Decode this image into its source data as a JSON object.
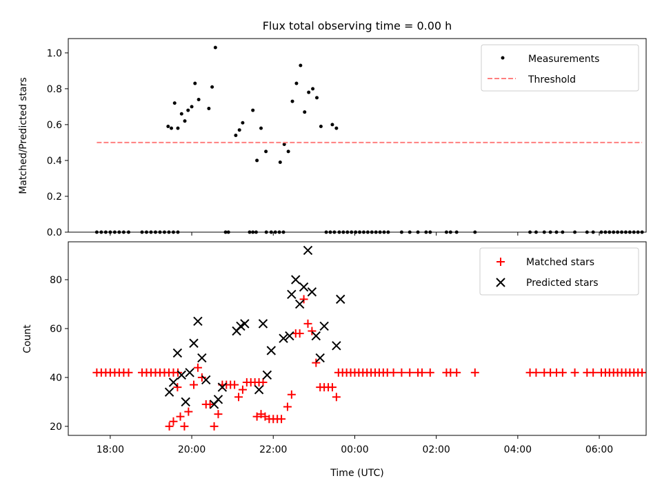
{
  "chart_data": [
    {
      "type": "scatter",
      "title": "Flux total observing time = 0.00 h",
      "xlabel": "",
      "ylabel": "Matched/Predicted stars",
      "xlim": [
        16.97,
        31.15
      ],
      "ylim": [
        0.0,
        1.08
      ],
      "yticks": [
        0.0,
        0.2,
        0.4,
        0.6,
        0.8,
        1.0
      ],
      "ytick_labels": [
        "0.0",
        "0.2",
        "0.4",
        "0.6",
        "0.8",
        "1.0"
      ],
      "legend_position": "top-right",
      "series": [
        {
          "name": "Measurements",
          "marker": "dot",
          "color": "#000000",
          "points": [
            [
              17.67,
              0
            ],
            [
              17.78,
              0
            ],
            [
              17.89,
              0
            ],
            [
              18.0,
              0
            ],
            [
              18.11,
              0
            ],
            [
              18.22,
              0
            ],
            [
              18.33,
              0
            ],
            [
              18.45,
              0
            ],
            [
              18.78,
              0
            ],
            [
              18.89,
              0
            ],
            [
              19.0,
              0
            ],
            [
              19.11,
              0
            ],
            [
              19.22,
              0
            ],
            [
              19.33,
              0
            ],
            [
              19.44,
              0
            ],
            [
              19.55,
              0
            ],
            [
              19.66,
              0
            ],
            [
              19.42,
              0.59
            ],
            [
              19.5,
              0.58
            ],
            [
              19.58,
              0.72
            ],
            [
              19.66,
              0.58
            ],
            [
              19.75,
              0.66
            ],
            [
              19.83,
              0.62
            ],
            [
              19.91,
              0.68
            ],
            [
              20.0,
              0.7
            ],
            [
              20.08,
              0.83
            ],
            [
              20.17,
              0.74
            ],
            [
              20.42,
              0.69
            ],
            [
              20.5,
              0.81
            ],
            [
              20.58,
              1.03
            ],
            [
              20.83,
              0
            ],
            [
              20.9,
              0
            ],
            [
              21.42,
              0
            ],
            [
              21.5,
              0
            ],
            [
              21.58,
              0
            ],
            [
              21.08,
              0.54
            ],
            [
              21.17,
              0.57
            ],
            [
              21.25,
              0.61
            ],
            [
              21.5,
              0.68
            ],
            [
              21.6,
              0.4
            ],
            [
              21.7,
              0.58
            ],
            [
              21.82,
              0.45
            ],
            [
              21.83,
              0
            ],
            [
              21.95,
              0
            ],
            [
              22.05,
              0
            ],
            [
              22.15,
              0
            ],
            [
              22.25,
              0
            ],
            [
              22.17,
              0.39
            ],
            [
              22.27,
              0.49
            ],
            [
              22.37,
              0.45
            ],
            [
              22.47,
              0.73
            ],
            [
              22.57,
              0.83
            ],
            [
              22.67,
              0.93
            ],
            [
              22.77,
              0.67
            ],
            [
              22.87,
              0.78
            ],
            [
              22.97,
              0.8
            ],
            [
              23.07,
              0.75
            ],
            [
              23.17,
              0.59
            ],
            [
              23.45,
              0.6
            ],
            [
              23.55,
              0.58
            ],
            [
              23.3,
              0
            ],
            [
              23.4,
              0
            ],
            [
              23.5,
              0
            ],
            [
              23.62,
              0
            ],
            [
              23.72,
              0
            ],
            [
              23.82,
              0
            ],
            [
              23.92,
              0
            ],
            [
              24.02,
              0
            ],
            [
              24.12,
              0
            ],
            [
              24.22,
              0
            ],
            [
              24.32,
              0
            ],
            [
              24.42,
              0
            ],
            [
              24.52,
              0
            ],
            [
              24.62,
              0
            ],
            [
              24.72,
              0
            ],
            [
              24.82,
              0
            ],
            [
              25.15,
              0
            ],
            [
              25.35,
              0
            ],
            [
              25.55,
              0
            ],
            [
              25.75,
              0
            ],
            [
              25.85,
              0
            ],
            [
              26.25,
              0
            ],
            [
              26.35,
              0
            ],
            [
              26.5,
              0
            ],
            [
              26.95,
              0
            ],
            [
              28.3,
              0
            ],
            [
              28.45,
              0
            ],
            [
              28.65,
              0
            ],
            [
              28.8,
              0
            ],
            [
              28.95,
              0
            ],
            [
              29.1,
              0
            ],
            [
              29.4,
              0
            ],
            [
              29.7,
              0
            ],
            [
              29.85,
              0
            ],
            [
              30.05,
              0
            ],
            [
              30.15,
              0
            ],
            [
              30.25,
              0
            ],
            [
              30.35,
              0
            ],
            [
              30.45,
              0
            ],
            [
              30.55,
              0
            ],
            [
              30.65,
              0
            ],
            [
              30.75,
              0
            ],
            [
              30.85,
              0
            ],
            [
              30.95,
              0
            ],
            [
              31.05,
              0
            ]
          ]
        },
        {
          "name": "Threshold",
          "marker": "dashed-line",
          "color": "#ff7f7f",
          "points": [
            [
              17.67,
              0.5
            ],
            [
              31.05,
              0.5
            ]
          ]
        }
      ]
    },
    {
      "type": "scatter",
      "title": "",
      "xlabel": "Time (UTC)",
      "ylabel": "Count",
      "xlim": [
        16.97,
        31.15
      ],
      "ylim": [
        16.3,
        95.5
      ],
      "yticks": [
        20,
        40,
        60,
        80
      ],
      "ytick_labels": [
        "20",
        "40",
        "60",
        "80"
      ],
      "xticks": [
        18,
        20,
        22,
        24,
        26,
        28,
        30
      ],
      "xtick_labels": [
        "18:00",
        "20:00",
        "22:00",
        "00:00",
        "02:00",
        "04:00",
        "06:00"
      ],
      "legend_position": "top-right",
      "series": [
        {
          "name": "Matched stars",
          "marker": "plus",
          "color": "#ff0000",
          "points": [
            [
              17.67,
              42
            ],
            [
              17.78,
              42
            ],
            [
              17.89,
              42
            ],
            [
              18.0,
              42
            ],
            [
              18.11,
              42
            ],
            [
              18.22,
              42
            ],
            [
              18.33,
              42
            ],
            [
              18.45,
              42
            ],
            [
              18.78,
              42
            ],
            [
              18.89,
              42
            ],
            [
              19.0,
              42
            ],
            [
              19.11,
              42
            ],
            [
              19.22,
              42
            ],
            [
              19.33,
              42
            ],
            [
              19.44,
              42
            ],
            [
              19.55,
              42
            ],
            [
              19.66,
              42
            ],
            [
              19.45,
              20
            ],
            [
              19.55,
              22
            ],
            [
              19.65,
              36
            ],
            [
              19.72,
              24
            ],
            [
              19.82,
              20
            ],
            [
              19.92,
              26
            ],
            [
              20.05,
              37
            ],
            [
              20.15,
              44
            ],
            [
              20.25,
              40
            ],
            [
              20.35,
              29
            ],
            [
              20.45,
              29
            ],
            [
              20.55,
              20
            ],
            [
              20.65,
              25
            ],
            [
              20.75,
              37
            ],
            [
              20.85,
              37
            ],
            [
              20.95,
              37
            ],
            [
              21.05,
              37
            ],
            [
              21.15,
              32
            ],
            [
              21.25,
              35
            ],
            [
              21.35,
              38
            ],
            [
              21.45,
              38
            ],
            [
              21.55,
              38
            ],
            [
              21.65,
              38
            ],
            [
              21.75,
              38
            ],
            [
              21.6,
              24
            ],
            [
              21.7,
              25
            ],
            [
              21.8,
              24
            ],
            [
              21.9,
              23
            ],
            [
              22.0,
              23
            ],
            [
              22.1,
              23
            ],
            [
              22.2,
              23
            ],
            [
              22.35,
              28
            ],
            [
              22.45,
              33
            ],
            [
              22.55,
              58
            ],
            [
              22.65,
              58
            ],
            [
              22.75,
              72
            ],
            [
              22.85,
              62
            ],
            [
              22.95,
              59
            ],
            [
              23.05,
              46
            ],
            [
              23.15,
              36
            ],
            [
              23.25,
              36
            ],
            [
              23.35,
              36
            ],
            [
              23.45,
              36
            ],
            [
              23.55,
              32
            ],
            [
              23.6,
              42
            ],
            [
              23.7,
              42
            ],
            [
              23.8,
              42
            ],
            [
              23.9,
              42
            ],
            [
              24.0,
              42
            ],
            [
              24.1,
              42
            ],
            [
              24.2,
              42
            ],
            [
              24.3,
              42
            ],
            [
              24.4,
              42
            ],
            [
              24.5,
              42
            ],
            [
              24.6,
              42
            ],
            [
              24.7,
              42
            ],
            [
              24.8,
              42
            ],
            [
              24.95,
              42
            ],
            [
              25.15,
              42
            ],
            [
              25.35,
              42
            ],
            [
              25.55,
              42
            ],
            [
              25.65,
              42
            ],
            [
              25.85,
              42
            ],
            [
              26.25,
              42
            ],
            [
              26.35,
              42
            ],
            [
              26.5,
              42
            ],
            [
              26.95,
              42
            ],
            [
              28.3,
              42
            ],
            [
              28.45,
              42
            ],
            [
              28.65,
              42
            ],
            [
              28.8,
              42
            ],
            [
              28.95,
              42
            ],
            [
              29.1,
              42
            ],
            [
              29.4,
              42
            ],
            [
              29.7,
              42
            ],
            [
              29.85,
              42
            ],
            [
              30.05,
              42
            ],
            [
              30.15,
              42
            ],
            [
              30.25,
              42
            ],
            [
              30.35,
              42
            ],
            [
              30.45,
              42
            ],
            [
              30.55,
              42
            ],
            [
              30.65,
              42
            ],
            [
              30.75,
              42
            ],
            [
              30.85,
              42
            ],
            [
              30.95,
              42
            ],
            [
              31.05,
              42
            ]
          ]
        },
        {
          "name": "Predicted stars",
          "marker": "x",
          "color": "#000000",
          "points": [
            [
              19.45,
              34
            ],
            [
              19.55,
              38
            ],
            [
              19.65,
              50
            ],
            [
              19.75,
              41
            ],
            [
              19.85,
              30
            ],
            [
              19.95,
              42
            ],
            [
              20.05,
              54
            ],
            [
              20.15,
              63
            ],
            [
              20.25,
              48
            ],
            [
              20.35,
              39
            ],
            [
              20.55,
              29
            ],
            [
              20.65,
              31
            ],
            [
              20.75,
              36
            ],
            [
              21.1,
              59
            ],
            [
              21.2,
              61
            ],
            [
              21.3,
              62
            ],
            [
              21.65,
              35
            ],
            [
              21.75,
              62
            ],
            [
              21.85,
              41
            ],
            [
              21.95,
              51
            ],
            [
              22.25,
              56
            ],
            [
              22.4,
              57
            ],
            [
              22.45,
              74
            ],
            [
              22.55,
              80
            ],
            [
              22.65,
              70
            ],
            [
              22.75,
              77
            ],
            [
              22.85,
              92
            ],
            [
              22.95,
              75
            ],
            [
              23.05,
              57
            ],
            [
              23.15,
              48
            ],
            [
              23.25,
              61
            ],
            [
              23.55,
              53
            ],
            [
              23.65,
              72
            ]
          ]
        }
      ]
    }
  ]
}
